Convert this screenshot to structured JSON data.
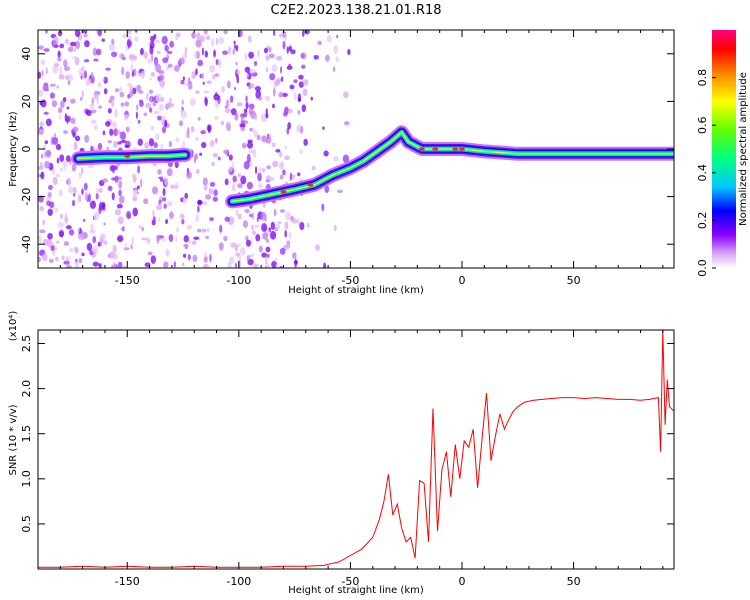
{
  "title": "C2E2.2023.138.21.01.R18",
  "chart_data": [
    {
      "type": "heatmap",
      "title": "C2E2.2023.138.21.01.R18",
      "xlabel": "Height of straight line (km)",
      "ylabel": "Frequency (Hz)",
      "xlim": [
        -190,
        95
      ],
      "ylim": [
        -50,
        50
      ],
      "xticks": [
        -150,
        -100,
        -50,
        0,
        50
      ],
      "xtick_labels": [
        "-150",
        "-100",
        "-50",
        "0",
        "50"
      ],
      "yticks": [
        -40,
        -20,
        0,
        20,
        40
      ],
      "ytick_labels": [
        "-40",
        "-20",
        "0",
        "20",
        "40"
      ],
      "colorbar": {
        "label": "Normalized spectral amplitude",
        "range": [
          0,
          1
        ],
        "ticks": [
          0.0,
          0.2,
          0.4,
          0.6,
          0.8
        ],
        "tick_labels": [
          "0.0",
          "0.2",
          "0.4",
          "0.6",
          "0.8"
        ],
        "colors": [
          "#ffffff",
          "#d9a6f5",
          "#8a00ff",
          "#0000ff",
          "#00c8ff",
          "#00ff80",
          "#60ff00",
          "#ffff00",
          "#ff8000",
          "#ff0000",
          "#ff0080"
        ]
      },
      "ridge": [
        {
          "x": -172,
          "y": -4
        },
        {
          "x": -160,
          "y": -3.5
        },
        {
          "x": -150,
          "y": -3.5
        },
        {
          "x": -140,
          "y": -3
        },
        {
          "x": -132,
          "y": -3
        },
        {
          "x": -124,
          "y": -2.5
        },
        {
          "x": -103,
          "y": -22
        },
        {
          "x": -95,
          "y": -21
        },
        {
          "x": -85,
          "y": -19
        },
        {
          "x": -75,
          "y": -17
        },
        {
          "x": -66,
          "y": -15
        },
        {
          "x": -58,
          "y": -11
        },
        {
          "x": -50,
          "y": -8
        },
        {
          "x": -44,
          "y": -5
        },
        {
          "x": -38,
          "y": -1
        },
        {
          "x": -32,
          "y": 3
        },
        {
          "x": -27,
          "y": 7
        },
        {
          "x": -24,
          "y": 3
        },
        {
          "x": -18,
          "y": 0
        },
        {
          "x": -10,
          "y": 0
        },
        {
          "x": 0,
          "y": 0
        },
        {
          "x": 10,
          "y": -1
        },
        {
          "x": 25,
          "y": -2
        },
        {
          "x": 50,
          "y": -2
        },
        {
          "x": 75,
          "y": -2
        },
        {
          "x": 90,
          "y": -2
        },
        {
          "x": 95,
          "y": -2
        }
      ]
    },
    {
      "type": "line",
      "xlabel": "Height of straight line (km)",
      "ylabel": "SNR (10 * v/v)",
      "yscale_label": "(x10⁴)",
      "xlim": [
        -190,
        95
      ],
      "ylim": [
        0,
        2.65
      ],
      "xticks": [
        -150,
        -100,
        -50,
        0,
        50
      ],
      "xtick_labels": [
        "-150",
        "-100",
        "-50",
        "0",
        "50"
      ],
      "yticks": [
        0.5,
        1.0,
        1.5,
        2.0,
        2.5
      ],
      "ytick_labels": [
        "0.5",
        "1.0",
        "1.5",
        "2.0",
        "2.5"
      ],
      "color": "#ff0000",
      "series": [
        {
          "x": [
            -190,
            -180,
            -170,
            -160,
            -150,
            -140,
            -130,
            -120,
            -110,
            -100,
            -90,
            -80,
            -70,
            -62,
            -55,
            -50,
            -45,
            -40,
            -37,
            -35,
            -33,
            -31,
            -29,
            -27,
            -25,
            -23,
            -21,
            -19,
            -17,
            -15,
            -13,
            -11,
            -9,
            -7,
            -5,
            -3,
            -1,
            1,
            3,
            5,
            7,
            9,
            11,
            13,
            15,
            17,
            19,
            21,
            23,
            25,
            28,
            32,
            36,
            40,
            45,
            50,
            55,
            60,
            65,
            70,
            75,
            80,
            84,
            86,
            88,
            89,
            90,
            91,
            92,
            93,
            95
          ],
          "values": [
            0.02,
            0.02,
            0.03,
            0.02,
            0.03,
            0.02,
            0.02,
            0.03,
            0.02,
            0.02,
            0.02,
            0.03,
            0.03,
            0.04,
            0.08,
            0.15,
            0.22,
            0.35,
            0.55,
            0.75,
            1.05,
            0.6,
            0.72,
            0.45,
            0.3,
            0.35,
            0.12,
            0.98,
            0.95,
            0.3,
            1.78,
            0.42,
            1.1,
            1.3,
            0.8,
            1.38,
            1.0,
            1.42,
            1.35,
            1.55,
            0.9,
            1.45,
            1.95,
            1.2,
            1.48,
            1.72,
            1.55,
            1.66,
            1.75,
            1.8,
            1.85,
            1.87,
            1.88,
            1.89,
            1.9,
            1.9,
            1.89,
            1.9,
            1.89,
            1.88,
            1.88,
            1.87,
            1.88,
            1.89,
            1.9,
            1.3,
            2.65,
            1.6,
            2.1,
            1.8,
            1.75
          ]
        }
      ]
    }
  ]
}
